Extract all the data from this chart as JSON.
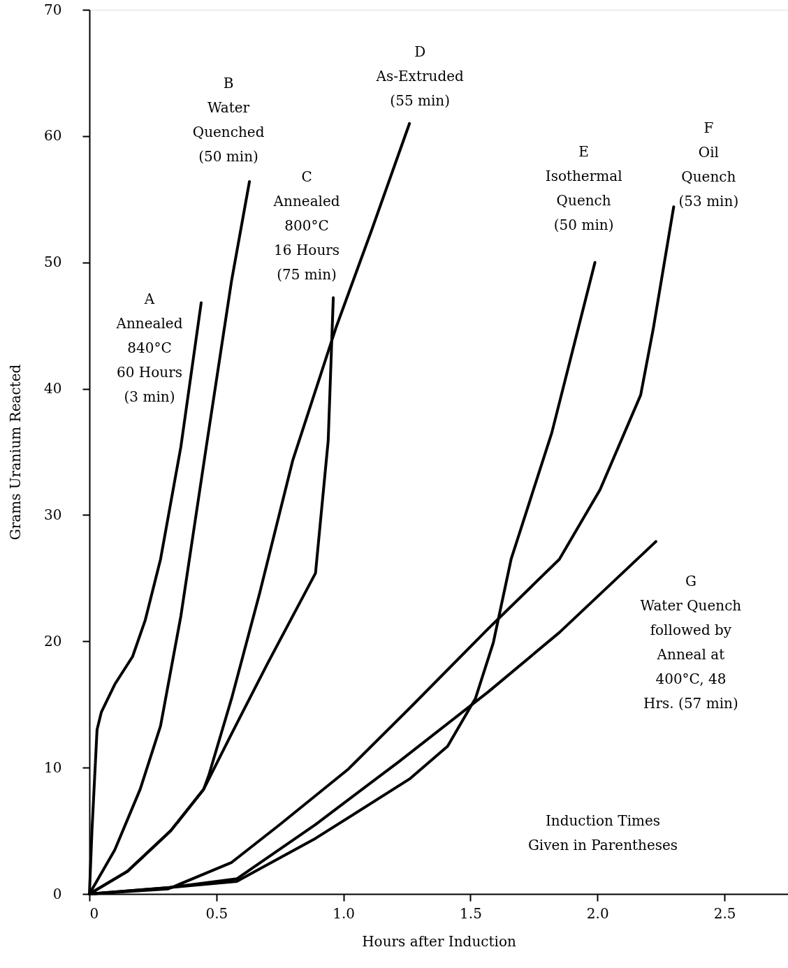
{
  "chart_data": {
    "type": "line",
    "xlabel": "Hours after Induction",
    "ylabel": "Grams Uranium Reacted",
    "xlim": [
      0,
      2.75
    ],
    "xticks": [
      {
        "value": 0,
        "label": "0"
      },
      {
        "value": 0.5,
        "label": "0.5"
      },
      {
        "value": 1.0,
        "label": "1.0"
      },
      {
        "value": 1.5,
        "label": "1.5"
      },
      {
        "value": 2.0,
        "label": "2.0"
      },
      {
        "value": 2.5,
        "label": "2.5"
      }
    ],
    "ylim": [
      0,
      70
    ],
    "yticks": [
      0,
      10,
      20,
      30,
      40,
      50,
      60,
      70
    ],
    "grid": false,
    "marker": "none",
    "line_style": "solid",
    "series": [
      {
        "name": "A\nAnnealed\n840°C\n60 Hours\n(3 min)",
        "color": "#000000",
        "x": [
          0,
          0.01,
          0.03,
          0.047,
          0.1,
          0.17,
          0.22,
          0.28,
          0.36,
          0.44
        ],
        "values": [
          0,
          5,
          13,
          14.4,
          16.6,
          18.8,
          21.7,
          26.5,
          35.4,
          46.8
        ]
      },
      {
        "name": "B\nWater\nQuenched\n(50 min)",
        "color": "#000000",
        "x": [
          0,
          0.1,
          0.2,
          0.28,
          0.36,
          0.46,
          0.56,
          0.63
        ],
        "values": [
          0,
          3.5,
          8.3,
          13.3,
          22,
          35.4,
          48.6,
          56.4
        ]
      },
      {
        "name": "C\nAnnealed\n800°C\n16 Hours\n(75 min)",
        "color": "#000000",
        "x": [
          0,
          0.15,
          0.32,
          0.45,
          0.56,
          0.7,
          0.89,
          0.94,
          0.96
        ],
        "values": [
          0,
          1.8,
          5,
          8.3,
          12.7,
          18.2,
          25.4,
          35.9,
          47.2
        ]
      },
      {
        "name": "D\nAs-Extruded\n(55 min)",
        "color": "#000000",
        "x": [
          0,
          0.15,
          0.32,
          0.45,
          0.47,
          0.56,
          0.67,
          0.8,
          0.97,
          1.11,
          1.26
        ],
        "values": [
          0,
          1.8,
          5,
          8.3,
          9.4,
          15.5,
          23.8,
          34.3,
          44.8,
          52.5,
          61
        ]
      },
      {
        "name": "E\nIsothermal\nQuench\n(50 min)",
        "color": "#000000",
        "x": [
          0,
          0.31,
          0.58,
          0.89,
          1.26,
          1.41,
          1.52,
          1.59,
          1.66,
          1.82,
          1.99
        ],
        "values": [
          0,
          0.5,
          1,
          4.4,
          9.1,
          11.7,
          15.5,
          19.9,
          26.5,
          36.5,
          50
        ]
      },
      {
        "name": "F\nOil\nQuench\n(53 min)",
        "color": "#000000",
        "x": [
          0,
          0.31,
          0.56,
          0.75,
          1.02,
          1.27,
          1.57,
          1.85,
          2.01,
          2.17,
          2.22,
          2.3
        ],
        "values": [
          0,
          0.4,
          2.5,
          5.5,
          9.9,
          14.9,
          21,
          26.5,
          32,
          39.5,
          44.8,
          54.4
        ]
      },
      {
        "name": "G\nWater Quench\nfollowed by\nAnneal at\n400°C, 48\nHrs. (57 min)",
        "color": "#000000",
        "x": [
          0,
          0.31,
          0.58,
          0.89,
          1.22,
          1.57,
          1.85,
          2.23
        ],
        "values": [
          0,
          0.5,
          1.2,
          5.5,
          10.5,
          16,
          20.7,
          27.9
        ]
      }
    ],
    "annotations": [
      "Induction Times\nGiven in Parentheses"
    ]
  }
}
